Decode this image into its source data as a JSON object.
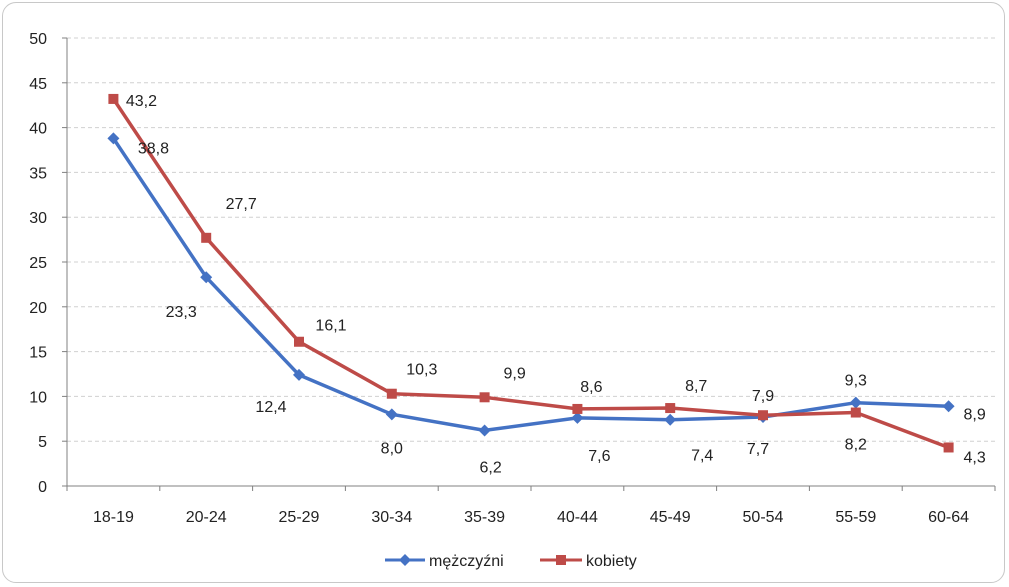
{
  "chart_data": {
    "type": "line",
    "categories": [
      "18-19",
      "20-24",
      "25-29",
      "30-34",
      "35-39",
      "40-44",
      "45-49",
      "50-54",
      "55-59",
      "60-64"
    ],
    "series": [
      {
        "name": "mężczyźni",
        "values": [
          38.8,
          23.3,
          12.4,
          8.0,
          6.2,
          7.6,
          7.4,
          7.7,
          9.3,
          8.9
        ],
        "labels": [
          "38,8",
          "23,3",
          "12,4",
          "8,0",
          "6,2",
          "7,6",
          "7,4",
          "7,7",
          "9,3",
          "8,9"
        ],
        "color": "#4472c4",
        "marker": "diamond"
      },
      {
        "name": "kobiety",
        "values": [
          43.2,
          27.7,
          16.1,
          10.3,
          9.9,
          8.6,
          8.7,
          7.9,
          8.2,
          4.3
        ],
        "labels": [
          "43,2",
          "27,7",
          "16,1",
          "10,3",
          "9,9",
          "8,6",
          "8,7",
          "7,9",
          "8,2",
          "4,3"
        ],
        "color": "#be4b48",
        "marker": "square"
      }
    ],
    "ylim": [
      0,
      50
    ],
    "yticks": [
      "0",
      "5",
      "10",
      "15",
      "20",
      "25",
      "30",
      "35",
      "40",
      "45",
      "50"
    ],
    "grid": true,
    "legend": "bottom"
  }
}
